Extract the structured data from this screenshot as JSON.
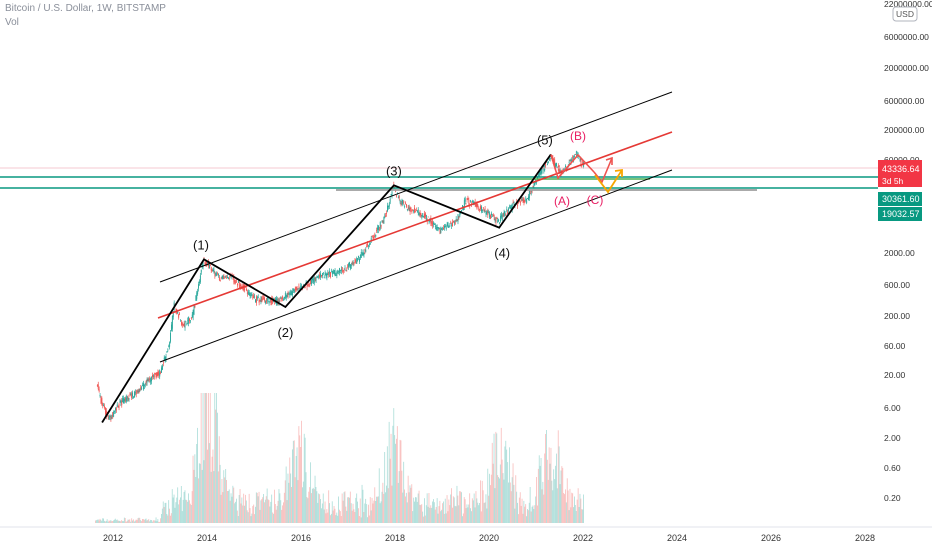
{
  "header": {
    "symbol_title": "Bitcoin / U.S. Dollar, 1W, BITSTAMP",
    "volume_label": "Vol",
    "currency_badge": "USD"
  },
  "colors": {
    "up": "#26a69a",
    "down": "#ef5350",
    "wave_line": "#000000",
    "channel_line": "#000000",
    "median_line": "#e53935",
    "support_teal": "#089981",
    "support_green": "#4caf50",
    "resistance_gray": "#9e9e9e",
    "label_red": "#e91e63",
    "arrow_orange": "#f7a600",
    "price_badge_red": "#f23645",
    "price_badge_teal": "#089981"
  },
  "chart_data": {
    "type": "line",
    "title": "Bitcoin / U.S. Dollar, 1W, BITSTAMP",
    "y_scale": "log",
    "x_ticks": [
      "2012",
      "2014",
      "2016",
      "2018",
      "2020",
      "2022",
      "2024",
      "2026",
      "2028"
    ],
    "y_ticks": [
      "22000000.00",
      "6000000.00",
      "2000000.00",
      "600000.00",
      "200000.00",
      "60000.00",
      "2000.00",
      "600.00",
      "200.00",
      "60.00",
      "20.00",
      "6.00",
      "2.00",
      "0.60",
      "0.20"
    ],
    "price_badges": [
      {
        "value": "43336.64",
        "sub": "3d 5h",
        "color": "red"
      },
      {
        "value": "30361.60",
        "color": "teal"
      },
      {
        "value": "19032.57",
        "color": "teal"
      }
    ],
    "price_series": {
      "name": "BTCUSD",
      "x": [
        2011.6,
        2011.75,
        2011.9,
        2012.2,
        2012.5,
        2012.8,
        2013.0,
        2013.2,
        2013.3,
        2013.5,
        2013.7,
        2013.92,
        2014.1,
        2014.3,
        2014.5,
        2014.8,
        2015.0,
        2015.2,
        2015.5,
        2015.8,
        2016.0,
        2016.4,
        2016.8,
        2017.2,
        2017.5,
        2017.8,
        2017.96,
        2018.1,
        2018.3,
        2018.6,
        2018.95,
        2019.3,
        2019.5,
        2019.8,
        2020.2,
        2020.5,
        2020.8,
        2021.1,
        2021.3,
        2021.55,
        2021.86,
        2022.0
      ],
      "values": [
        14,
        5,
        2.5,
        5,
        7,
        12,
        15,
        45,
        200,
        90,
        140,
        1100,
        800,
        550,
        600,
        380,
        250,
        240,
        230,
        330,
        400,
        600,
        720,
        1100,
        2500,
        6000,
        19000,
        11000,
        8000,
        6500,
        3500,
        5000,
        11000,
        8500,
        5000,
        9200,
        11500,
        33000,
        58000,
        32000,
        69000,
        43336.64
      ]
    },
    "elliott_waves": [
      {
        "label": "(1)",
        "x": 2013.92,
        "value": 1150
      },
      {
        "label": "(2)",
        "x": 2015.65,
        "value": 185
      },
      {
        "label": "(3)",
        "x": 2017.96,
        "value": 19800
      },
      {
        "label": "(4)",
        "x": 2020.2,
        "value": 3900
      },
      {
        "label": "(5)",
        "x": 2021.3,
        "value": 64800
      }
    ],
    "corrective_labels": [
      {
        "label": "(A)"
      },
      {
        "label": "(B)"
      },
      {
        "label": "(C)"
      }
    ],
    "volume": {
      "name": "Vol",
      "x_start": 2011.6,
      "x_end": 2022.0,
      "peak_years": [
        2013.9,
        2014.1,
        2015.95,
        2017.95,
        2020.2,
        2021.3
      ]
    }
  }
}
